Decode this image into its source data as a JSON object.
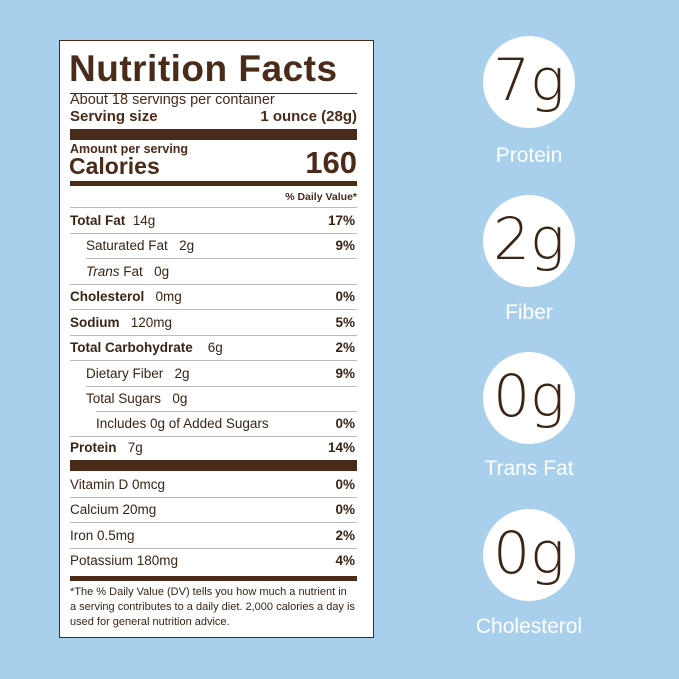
{
  "label": {
    "title": "Nutrition Facts",
    "servings": "About 18 servings per container",
    "serving_size_label": "Serving size",
    "serving_size_value": "1 ounce (28g)",
    "amount_per_serving": "Amount per serving",
    "calories_label": "Calories",
    "calories_value": "160",
    "dv_header": "% Daily Value*",
    "nutrients": [
      {
        "name": "Total Fat",
        "amount": "14g",
        "pct": "17%"
      },
      {
        "name": "Saturated Fat",
        "amount": "2g",
        "pct": "9%"
      },
      {
        "name": "Trans",
        "name2": "Fat",
        "amount": "0g",
        "pct": ""
      },
      {
        "name": "Cholesterol",
        "amount": "0mg",
        "pct": "0%"
      },
      {
        "name": "Sodium",
        "amount": "120mg",
        "pct": "5%"
      },
      {
        "name": "Total Carbohydrate",
        "amount": "6g",
        "pct": "2%"
      },
      {
        "name": "Dietary Fiber",
        "amount": "2g",
        "pct": "9%"
      },
      {
        "name": "Total Sugars",
        "amount": "0g",
        "pct": ""
      },
      {
        "name": "Includes 0g of Added Sugars",
        "amount": "",
        "pct": "0%"
      },
      {
        "name": "Protein",
        "amount": "7g",
        "pct": "14%"
      }
    ],
    "vitamins": [
      {
        "name": "Vitamin D 0mcg",
        "pct": "0%"
      },
      {
        "name": "Calcium 20mg",
        "pct": "0%"
      },
      {
        "name": "Iron 0.5mg",
        "pct": "2%"
      },
      {
        "name": "Potassium 180mg",
        "pct": "4%"
      }
    ],
    "footnote": "*The % Daily Value (DV) tells you how much a nutrient in a serving contributes to a daily diet. 2,000 calories a day is used for general nutrition advice."
  },
  "highlights": [
    {
      "value": "7g",
      "label": "Protein"
    },
    {
      "value": "2g",
      "label": "Fiber"
    },
    {
      "value": "0g",
      "label": "Trans Fat"
    },
    {
      "value": "0g",
      "label": "Cholesterol"
    }
  ],
  "colors": {
    "background": "#a8d0ec",
    "brown": "#4a2a19"
  }
}
